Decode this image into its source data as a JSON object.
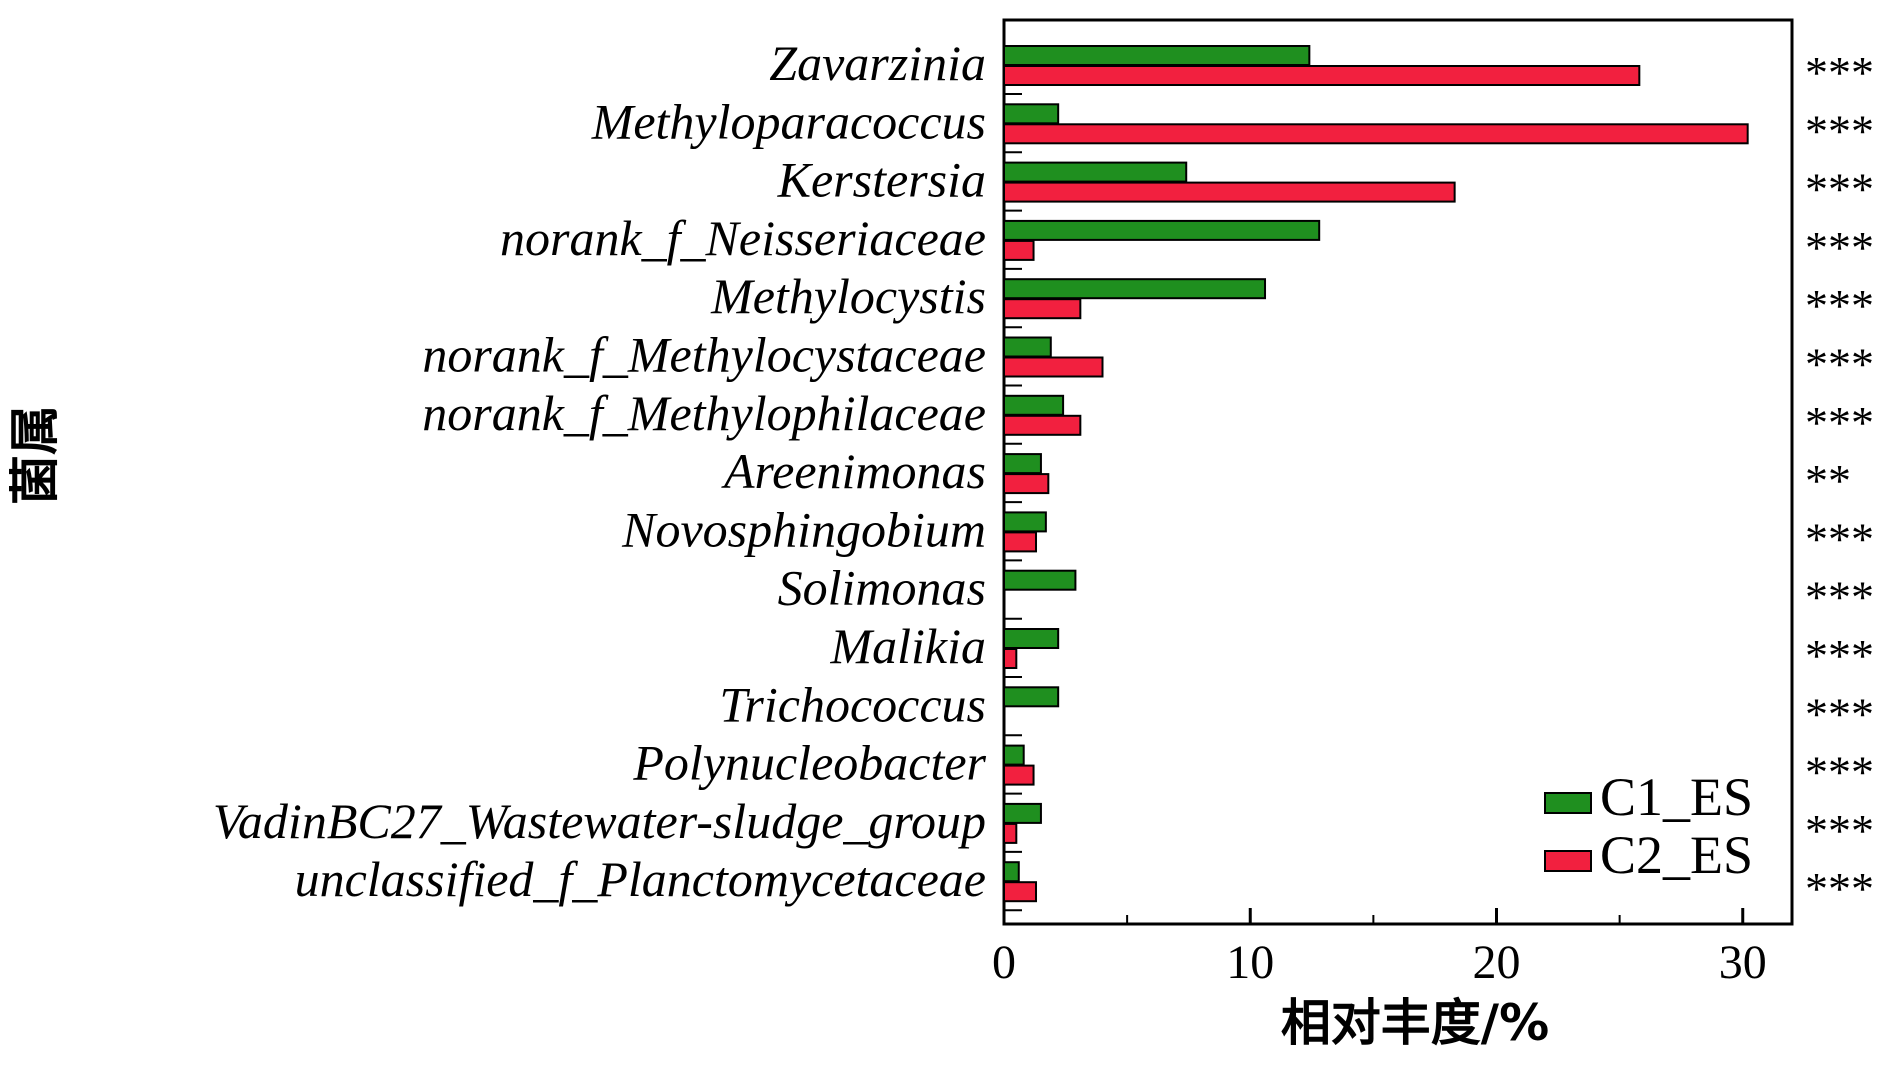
{
  "chart_data": {
    "type": "bar",
    "orientation": "horizontal",
    "categories": [
      "Zavarzinia",
      "Methyloparacoccus",
      "Kerstersia",
      "norank_f_Neisseriaceae",
      "Methylocystis",
      "norank_f_Methylocystaceae",
      "norank_f_Methylophilaceae",
      "Areenimonas",
      "Novosphingobium",
      "Solimonas",
      "Malikia",
      "Trichococcus",
      "Polynucleobacter",
      "VadinBC27_Wastewater-sludge_group",
      "unclassified_f_Planctomycetaceae"
    ],
    "series": [
      {
        "name": "C1_ES",
        "color": "#1f8f1f",
        "values": [
          12.4,
          2.2,
          7.4,
          12.8,
          10.6,
          1.9,
          2.4,
          1.5,
          1.7,
          2.9,
          2.2,
          2.2,
          0.8,
          1.5,
          0.6
        ]
      },
      {
        "name": "C2_ES",
        "color": "#f2203f",
        "values": [
          25.8,
          30.2,
          18.3,
          1.2,
          3.1,
          4.0,
          3.1,
          1.8,
          1.3,
          0.0,
          0.5,
          0.0,
          1.2,
          0.5,
          1.3
        ]
      }
    ],
    "significance": [
      "***",
      "***",
      "***",
      "***",
      "***",
      "***",
      "***",
      "**",
      "***",
      "***",
      "***",
      "***",
      "***",
      "***",
      "***"
    ],
    "xlabel": "相对丰度/%",
    "ylabel": "菌属",
    "xlim": [
      0,
      32
    ],
    "xticks": [
      0,
      10,
      20,
      30
    ],
    "grid": false,
    "legend": "bottom-right"
  }
}
